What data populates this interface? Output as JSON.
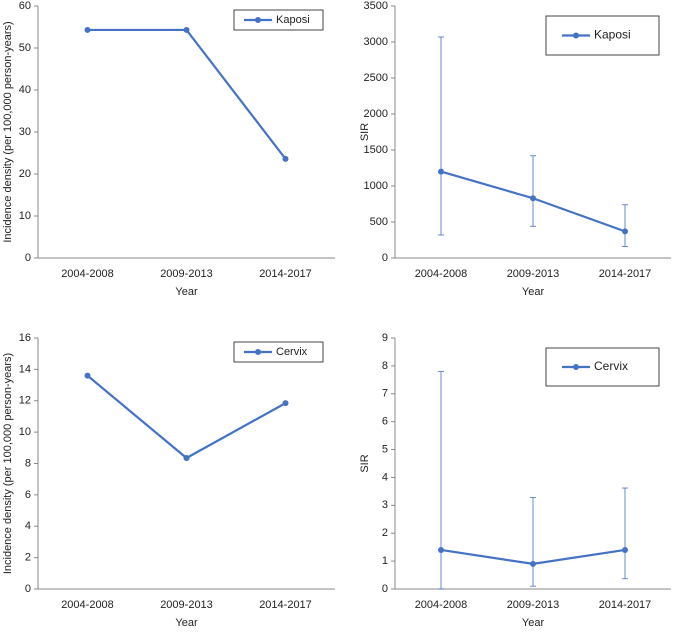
{
  "chart_data": [
    {
      "type": "line",
      "x_label": "Year",
      "y_label": "Incidence density (per 100,000 person-years)",
      "categories": [
        "2004-2008",
        "2009-2013",
        "2014-2017"
      ],
      "series": [
        {
          "name": "Kaposi",
          "color": "#4472c4",
          "values": [
            54.3,
            54.3,
            23.6
          ]
        }
      ],
      "ylim": [
        0,
        60
      ],
      "yticks": [
        0,
        10,
        20,
        30,
        40,
        50,
        60
      ],
      "legend": "upper right"
    },
    {
      "type": "line",
      "x_label": "Year",
      "y_label": "SIR",
      "categories": [
        "2004-2008",
        "2009-2013",
        "2014-2017"
      ],
      "series": [
        {
          "name": "Kaposi",
          "color": "#4472c4",
          "values": [
            1200,
            830,
            370
          ],
          "error_low": [
            320,
            440,
            160
          ],
          "error_high": [
            3070,
            1420,
            740
          ]
        }
      ],
      "ylim": [
        0,
        3500
      ],
      "yticks": [
        0,
        500,
        1000,
        1500,
        2000,
        2500,
        3000,
        3500
      ],
      "legend": "upper right"
    },
    {
      "type": "line",
      "x_label": "Year",
      "y_label": "Incidence density (per 100,000 person-years)",
      "categories": [
        "2004-2008",
        "2009-2013",
        "2014-2017"
      ],
      "series": [
        {
          "name": "Cervix",
          "color": "#4472c4",
          "values": [
            13.6,
            8.35,
            11.85
          ]
        }
      ],
      "ylim": [
        0,
        16
      ],
      "yticks": [
        0,
        2,
        4,
        6,
        8,
        10,
        12,
        14,
        16
      ],
      "legend": "upper right"
    },
    {
      "type": "line",
      "x_label": "Year",
      "y_label": "SIR",
      "categories": [
        "2004-2008",
        "2009-2013",
        "2014-2017"
      ],
      "series": [
        {
          "name": "Cervix",
          "color": "#4472c4",
          "values": [
            1.4,
            0.9,
            1.4
          ],
          "error_low": [
            0,
            0.1,
            0.37
          ],
          "error_high": [
            7.8,
            3.28,
            3.62
          ]
        }
      ],
      "ylim": [
        0,
        9
      ],
      "yticks": [
        0,
        1,
        2,
        3,
        4,
        5,
        6,
        7,
        8,
        9
      ],
      "legend": "upper right"
    }
  ]
}
